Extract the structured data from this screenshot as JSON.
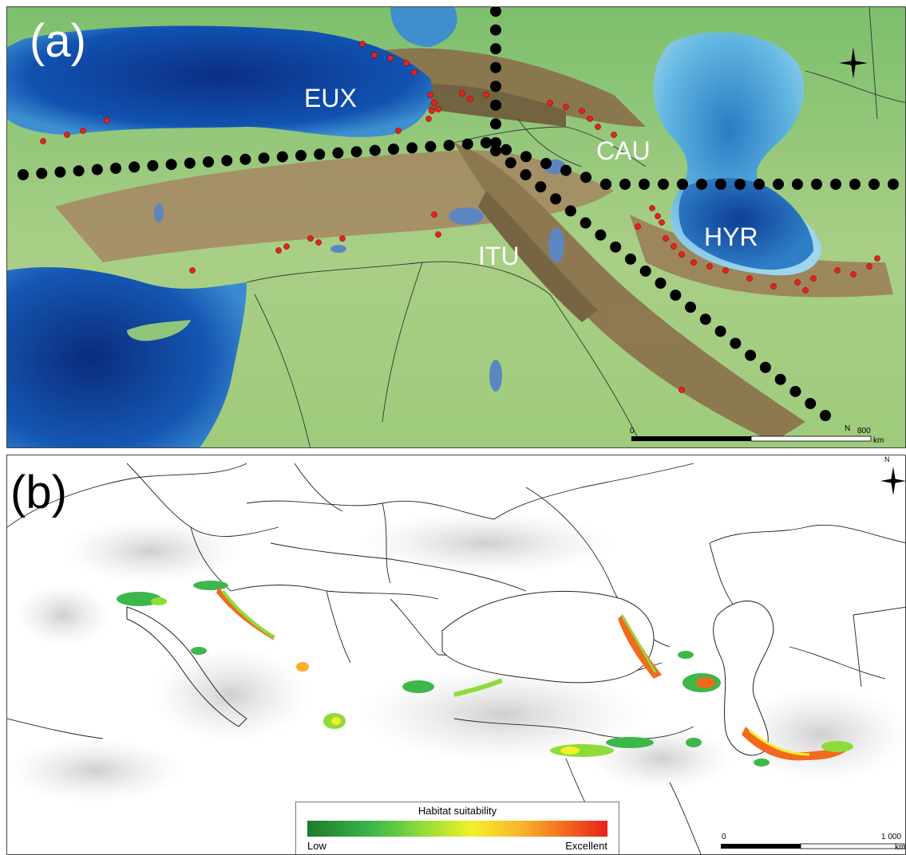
{
  "panel_a": {
    "label": "(a)",
    "regions": [
      "EUX",
      "CAU",
      "HYR",
      "ITU"
    ],
    "scale": {
      "start": "0",
      "end": "800",
      "unit": "km"
    },
    "north_label": "N"
  },
  "panel_b": {
    "label": "(b)",
    "legend": {
      "title": "Habitat suitability",
      "low": "Low",
      "high": "Excellent"
    },
    "scale": {
      "start": "0",
      "end": "1 000",
      "unit": "km"
    },
    "north_label": "N"
  },
  "colors": {
    "sea_deep": "#0b3b8e",
    "sea_shallow": "#5fb6e0",
    "land_low": "#6fb86a",
    "land_high": "#8a6a48",
    "occurrence": "#e8211c",
    "divider": "#000000",
    "suitability_low": "#1e7a2e",
    "suitability_high": "#e8211c"
  }
}
